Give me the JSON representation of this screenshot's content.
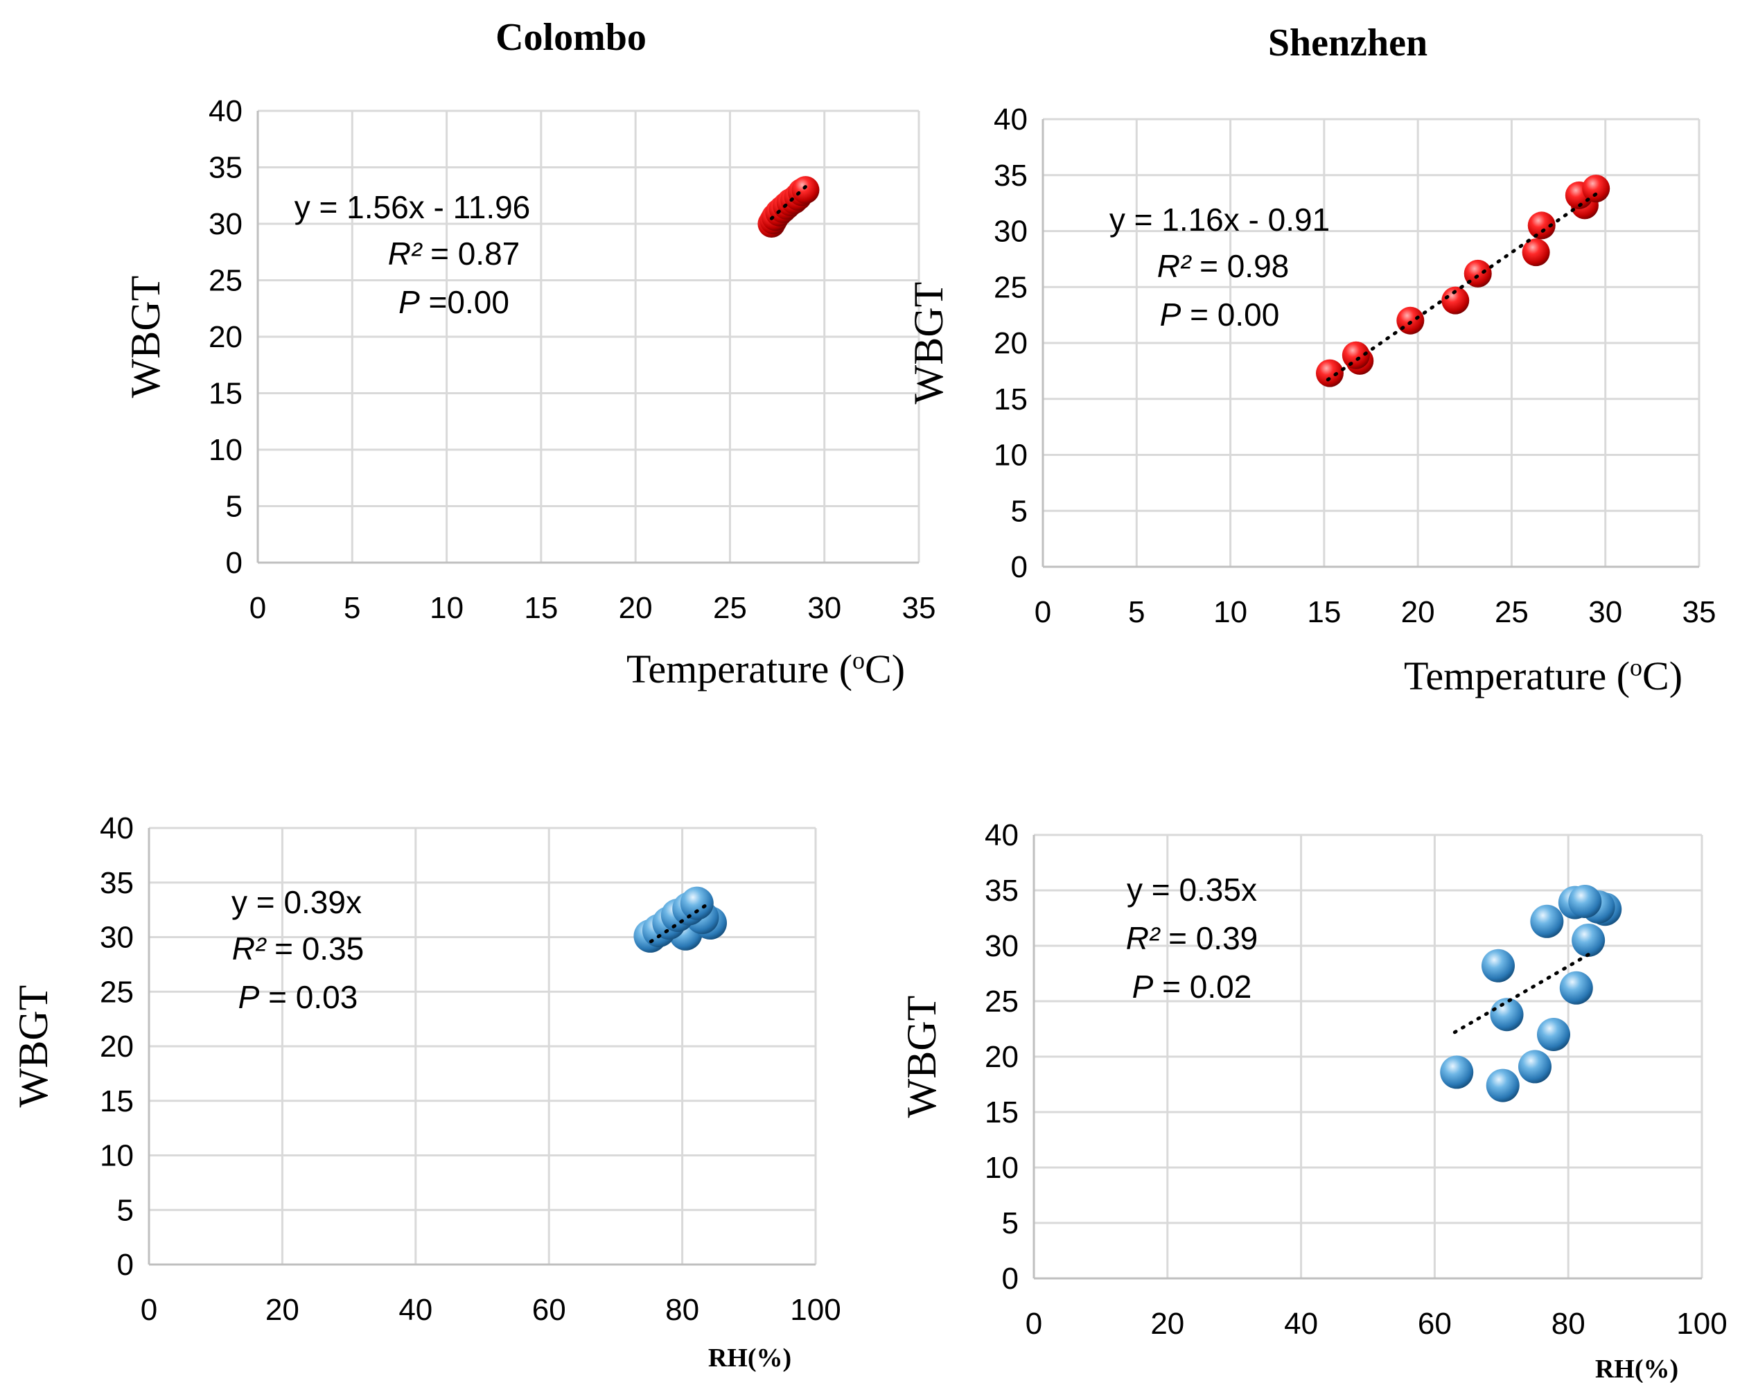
{
  "colors": {
    "red_marker": "#e00000",
    "blue_marker": "#3a8fc9",
    "grid": "#d9d9d9",
    "axis": "#bfbfbf"
  },
  "column_titles": [
    "Colombo",
    "Shenzhen"
  ],
  "chart_data": [
    {
      "id": "colombo-temp",
      "type": "scatter",
      "marker": "red",
      "title": "Colombo",
      "xlabel": "Temperature (oC)",
      "ylabel": "WBGT",
      "xlim": [
        0,
        35
      ],
      "ylim": [
        0,
        40
      ],
      "xticks": [
        0,
        5,
        10,
        15,
        20,
        25,
        30,
        35
      ],
      "yticks": [
        0,
        5,
        10,
        15,
        20,
        25,
        30,
        35,
        40
      ],
      "points": [
        [
          27.2,
          30.0
        ],
        [
          27.3,
          30.3
        ],
        [
          27.4,
          30.6
        ],
        [
          27.6,
          31.0
        ],
        [
          27.8,
          31.3
        ],
        [
          28.0,
          31.6
        ],
        [
          28.2,
          31.9
        ],
        [
          28.4,
          32.1
        ],
        [
          28.6,
          32.4
        ],
        [
          28.8,
          32.8
        ],
        [
          29.0,
          33.0
        ]
      ],
      "trendline": {
        "x1": 27.2,
        "x2": 29.0,
        "slope": 1.56,
        "intercept": -11.96
      },
      "equation": "y = 1.56x - 11.96",
      "r2_symbol": "R²",
      "r2_value": "= 0.87",
      "p_symbol": "P",
      "p_value": "=0.00"
    },
    {
      "id": "shenzhen-temp",
      "type": "scatter",
      "marker": "red",
      "title": "Shenzhen",
      "xlabel": "Temperature (oC)",
      "ylabel": "WBGT",
      "xlim": [
        0,
        35
      ],
      "ylim": [
        0,
        40
      ],
      "xticks": [
        0,
        5,
        10,
        15,
        20,
        25,
        30,
        35
      ],
      "yticks": [
        0,
        5,
        10,
        15,
        20,
        25,
        30,
        35,
        40
      ],
      "points": [
        [
          15.3,
          17.3
        ],
        [
          16.7,
          18.9
        ],
        [
          16.9,
          18.4
        ],
        [
          19.6,
          22.0
        ],
        [
          22.0,
          23.8
        ],
        [
          23.2,
          26.2
        ],
        [
          26.3,
          28.1
        ],
        [
          26.6,
          30.5
        ],
        [
          28.6,
          33.2
        ],
        [
          28.9,
          32.3
        ],
        [
          29.5,
          33.8
        ]
      ],
      "trendline": {
        "x1": 15.2,
        "x2": 29.5,
        "slope": 1.16,
        "intercept": -0.91
      },
      "equation": "y = 1.16x - 0.91",
      "r2_symbol": "R²",
      "r2_value": "= 0.98",
      "p_symbol": "P",
      "p_value": "= 0.00"
    },
    {
      "id": "colombo-rh",
      "type": "scatter",
      "marker": "blue",
      "xlabel": "RH(%)",
      "ylabel": "WBGT",
      "xlim": [
        0,
        100
      ],
      "ylim": [
        0,
        40
      ],
      "xticks": [
        0,
        20,
        40,
        60,
        80,
        100
      ],
      "yticks": [
        0,
        5,
        10,
        15,
        20,
        25,
        30,
        35,
        40
      ],
      "points": [
        [
          75.2,
          30.1
        ],
        [
          76.5,
          30.6
        ],
        [
          78.0,
          31.3
        ],
        [
          79.3,
          32.0
        ],
        [
          80.5,
          30.3
        ],
        [
          81.0,
          32.6
        ],
        [
          82.2,
          33.1
        ],
        [
          83.0,
          31.8
        ],
        [
          84.2,
          31.3
        ]
      ],
      "trendline": {
        "x1": 75.3,
        "x2": 83.5,
        "y1": 29.6,
        "y2": 32.9
      },
      "equation": "y = 0.39x",
      "r2_symbol": "R²",
      "r2_value": "= 0.35",
      "p_symbol": "P",
      "p_value": "= 0.03"
    },
    {
      "id": "shenzhen-rh",
      "type": "scatter",
      "marker": "blue",
      "xlabel": "RH(%)",
      "ylabel": "WBGT",
      "xlim": [
        0,
        100
      ],
      "ylim": [
        0,
        40
      ],
      "xticks": [
        0,
        20,
        40,
        60,
        80,
        100
      ],
      "yticks": [
        0,
        5,
        10,
        15,
        20,
        25,
        30,
        35,
        40
      ],
      "points": [
        [
          63.3,
          18.6
        ],
        [
          69.5,
          28.2
        ],
        [
          70.2,
          17.4
        ],
        [
          70.8,
          23.8
        ],
        [
          75.0,
          19.1
        ],
        [
          76.8,
          32.2
        ],
        [
          77.8,
          22.0
        ],
        [
          81.0,
          33.9
        ],
        [
          81.2,
          26.2
        ],
        [
          82.5,
          34.0
        ],
        [
          83.0,
          30.5
        ],
        [
          84.5,
          33.5
        ],
        [
          85.5,
          33.3
        ]
      ],
      "trendline": {
        "x1": 63.0,
        "x2": 83.0,
        "y1": 22.2,
        "y2": 29.2
      },
      "equation": "y = 0.35x",
      "r2_symbol": "R²",
      "r2_value": "= 0.39",
      "p_symbol": "P",
      "p_value": "= 0.02"
    }
  ]
}
